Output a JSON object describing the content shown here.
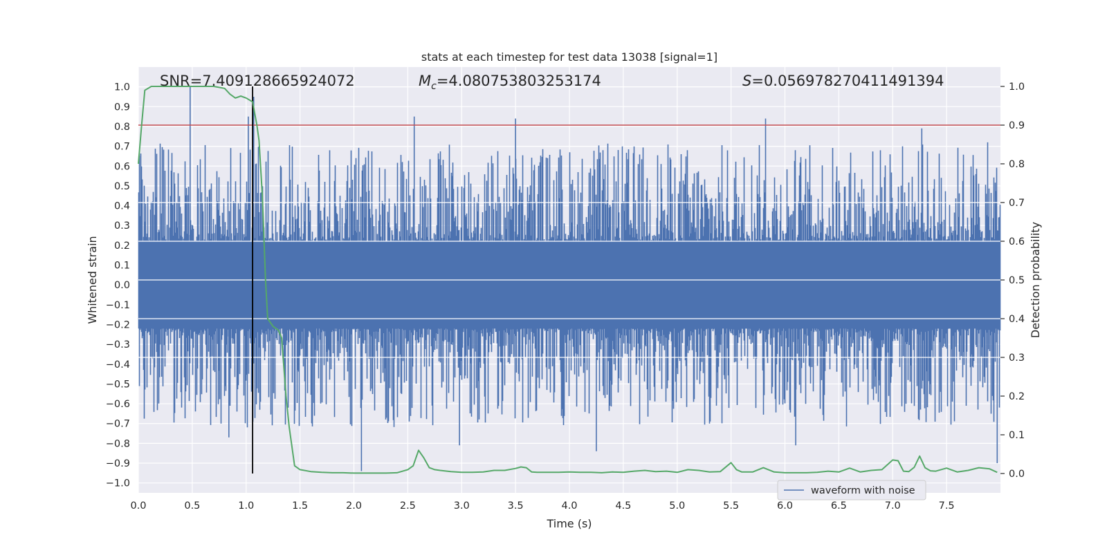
{
  "chart_data": {
    "type": "line",
    "title": "stats at each timestep for test data 13038 [signal=1]",
    "xlabel": "Time (s)",
    "ylabel_left": "Whitened strain",
    "ylabel_right": "Detection probability",
    "xlim": [
      0,
      8
    ],
    "ylim_left": [
      -1.05,
      1.1
    ],
    "ylim_right": [
      -0.05,
      1.05
    ],
    "x_ticks": [
      0.0,
      0.5,
      1.0,
      1.5,
      2.0,
      2.5,
      3.0,
      3.5,
      4.0,
      4.5,
      5.0,
      5.5,
      6.0,
      6.5,
      7.0,
      7.5
    ],
    "x_tick_labels": [
      "0.0",
      "0.5",
      "1.0",
      "1.5",
      "2.0",
      "2.5",
      "3.0",
      "3.5",
      "4.0",
      "4.5",
      "5.0",
      "5.5",
      "6.0",
      "6.5",
      "7.0",
      "7.5"
    ],
    "y_left_ticks": [
      1.0,
      0.9,
      0.8,
      0.7,
      0.6,
      0.5,
      0.4,
      0.3,
      0.2,
      0.1,
      0.0,
      -0.1,
      -0.2,
      -0.3,
      -0.4,
      -0.5,
      -0.6,
      -0.7,
      -0.8,
      -0.9,
      -1.0
    ],
    "y_left_tick_labels": [
      "1.0",
      "0.9",
      "0.8",
      "0.7",
      "0.6",
      "0.5",
      "0.4",
      "0.3",
      "0.2",
      "0.1",
      "0.0",
      "−0.1",
      "−0.2",
      "−0.3",
      "−0.4",
      "−0.5",
      "−0.6",
      "−0.7",
      "−0.8",
      "−0.9",
      "−1.0"
    ],
    "y_right_ticks": [
      1.0,
      0.9,
      0.8,
      0.7,
      0.6,
      0.5,
      0.4,
      0.3,
      0.2,
      0.1,
      0.0
    ],
    "y_right_tick_labels": [
      "1.0",
      "0.9",
      "0.8",
      "0.7",
      "0.6",
      "0.5",
      "0.4",
      "0.3",
      "0.2",
      "0.1",
      "0.0"
    ],
    "grid": true,
    "annotations": {
      "snr": "SNR=7.409128665924072",
      "mc_symbol": "M",
      "mc_subscript": "c",
      "mc_value": "=4.080753803253174",
      "s_symbol": "S",
      "s_value": "=0.056978270411491394"
    },
    "threshold_line": {
      "y_right": 0.9,
      "color": "#c44e52"
    },
    "vertical_marker": {
      "x": 1.06,
      "y_right_range": [
        0.0,
        1.0
      ],
      "color": "#000000"
    },
    "series": [
      {
        "name": "waveform with noise",
        "axis": "left",
        "color": "#4c72b0",
        "kind": "dense-noise",
        "band": 0.22,
        "sample_peaks": [
          {
            "x": 0.48,
            "y": 1.0
          },
          {
            "x": 1.02,
            "y": 0.85
          },
          {
            "x": 1.07,
            "y": 0.95
          },
          {
            "x": 2.56,
            "y": 0.85
          },
          {
            "x": 3.5,
            "y": 0.84
          },
          {
            "x": 5.82,
            "y": 0.84
          },
          {
            "x": 7.27,
            "y": 0.79
          },
          {
            "x": 2.07,
            "y": -0.94
          },
          {
            "x": 4.25,
            "y": -0.84
          },
          {
            "x": 6.1,
            "y": -0.81
          },
          {
            "x": 2.98,
            "y": -0.81
          },
          {
            "x": 0.84,
            "y": -0.77
          },
          {
            "x": 7.97,
            "y": -0.9
          }
        ]
      },
      {
        "name": "Detection probability",
        "axis": "right",
        "color": "#55a868",
        "x": [
          0.0,
          0.03,
          0.06,
          0.12,
          0.2,
          0.3,
          0.5,
          0.7,
          0.8,
          0.85,
          0.9,
          0.95,
          1.0,
          1.06,
          1.1,
          1.12,
          1.15,
          1.18,
          1.2,
          1.25,
          1.3,
          1.33,
          1.37,
          1.4,
          1.45,
          1.5,
          1.6,
          1.7,
          1.8,
          1.9,
          2.0,
          2.1,
          2.2,
          2.3,
          2.4,
          2.5,
          2.55,
          2.6,
          2.65,
          2.7,
          2.75,
          2.8,
          2.9,
          3.0,
          3.1,
          3.2,
          3.3,
          3.4,
          3.5,
          3.55,
          3.6,
          3.65,
          3.7,
          3.8,
          3.9,
          4.0,
          4.1,
          4.2,
          4.3,
          4.4,
          4.5,
          4.6,
          4.7,
          4.8,
          4.9,
          5.0,
          5.1,
          5.2,
          5.3,
          5.4,
          5.5,
          5.55,
          5.6,
          5.7,
          5.8,
          5.9,
          6.0,
          6.1,
          6.2,
          6.3,
          6.4,
          6.5,
          6.6,
          6.7,
          6.8,
          6.9,
          7.0,
          7.05,
          7.1,
          7.15,
          7.2,
          7.25,
          7.3,
          7.35,
          7.4,
          7.5,
          7.6,
          7.7,
          7.8,
          7.9,
          7.97
        ],
        "y": [
          0.8,
          0.9,
          0.99,
          1.0,
          1.0,
          1.0,
          1.0,
          1.0,
          0.995,
          0.98,
          0.97,
          0.975,
          0.97,
          0.96,
          0.9,
          0.86,
          0.72,
          0.5,
          0.4,
          0.38,
          0.37,
          0.35,
          0.2,
          0.12,
          0.02,
          0.01,
          0.005,
          0.003,
          0.002,
          0.002,
          0.001,
          0.001,
          0.001,
          0.001,
          0.002,
          0.01,
          0.02,
          0.06,
          0.04,
          0.015,
          0.01,
          0.008,
          0.005,
          0.003,
          0.003,
          0.004,
          0.008,
          0.008,
          0.013,
          0.017,
          0.015,
          0.004,
          0.003,
          0.003,
          0.003,
          0.004,
          0.003,
          0.003,
          0.002,
          0.004,
          0.003,
          0.006,
          0.008,
          0.005,
          0.006,
          0.003,
          0.01,
          0.008,
          0.004,
          0.005,
          0.028,
          0.01,
          0.004,
          0.004,
          0.015,
          0.004,
          0.002,
          0.002,
          0.002,
          0.003,
          0.006,
          0.004,
          0.014,
          0.004,
          0.008,
          0.01,
          0.035,
          0.033,
          0.006,
          0.005,
          0.016,
          0.045,
          0.015,
          0.007,
          0.006,
          0.014,
          0.004,
          0.008,
          0.015,
          0.012,
          0.003
        ]
      }
    ],
    "legend": {
      "placement": "lower-right",
      "entries": [
        "waveform with noise"
      ]
    }
  }
}
